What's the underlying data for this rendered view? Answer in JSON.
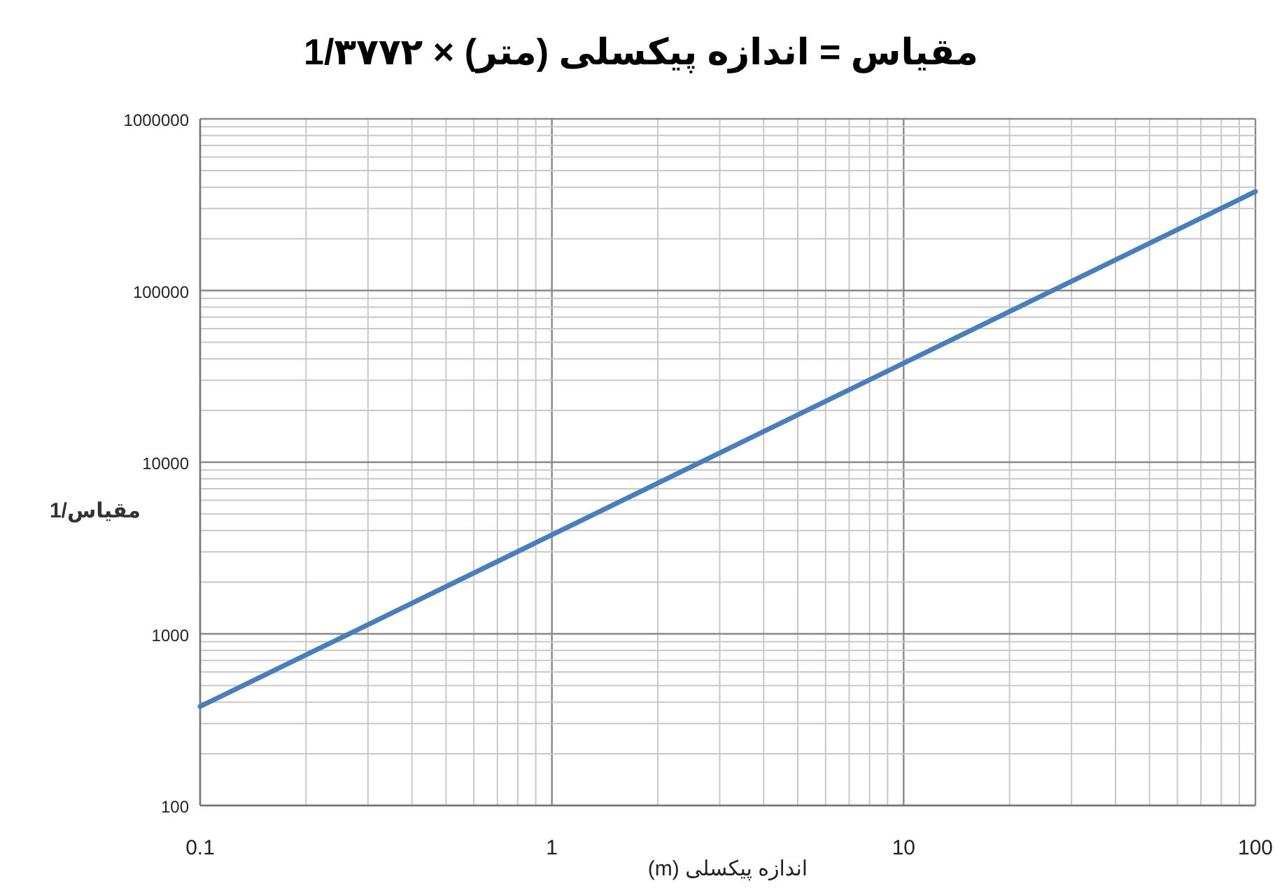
{
  "chart_data": {
    "type": "line",
    "title": "1/مقیاس = اندازه پیکسلی (متر) × ۳۷۷۲",
    "xlabel": "اندازه پیکسلی (m)",
    "ylabel": "1/مقیاس",
    "x": [
      0.1,
      1,
      10,
      100
    ],
    "series": [
      {
        "color": "#4a7ebb",
        "values": [
          377.2,
          3772,
          37720,
          377200
        ]
      }
    ],
    "log": "xy",
    "xlim": [
      0.1,
      100
    ],
    "ylim": [
      100,
      1000000
    ],
    "xticks": [
      0.1,
      1,
      10,
      100
    ],
    "yticks": [
      100,
      1000,
      10000,
      100000,
      1000000
    ],
    "grid": true,
    "marker": "none",
    "line_style": "solid"
  }
}
